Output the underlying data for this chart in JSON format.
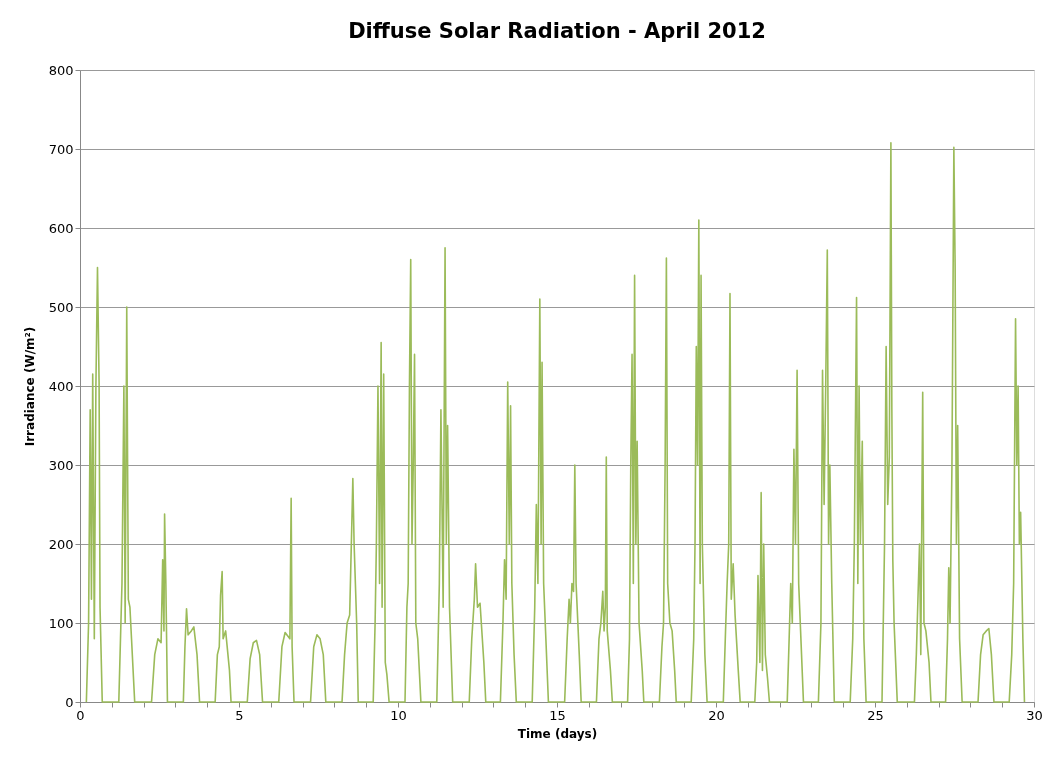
{
  "chart_data": {
    "type": "line",
    "title": "Diffuse Solar Radiation - April 2012",
    "xlabel": "Time (days)",
    "ylabel": "Irradiance (W/m²)",
    "xlim": [
      0,
      30
    ],
    "ylim": [
      0,
      800
    ],
    "xticks": [
      0,
      {
        "value": 1,
        "label": null
      },
      {
        "value": 2,
        "label": null
      },
      {
        "value": 3,
        "label": null
      },
      {
        "value": 4,
        "label": null
      },
      5,
      {
        "value": 6,
        "label": null
      },
      {
        "value": 7,
        "label": null
      },
      {
        "value": 8,
        "label": null
      },
      {
        "value": 9,
        "label": null
      },
      10,
      {
        "value": 11,
        "label": null
      },
      {
        "value": 12,
        "label": null
      },
      {
        "value": 13,
        "label": null
      },
      {
        "value": 14,
        "label": null
      },
      15,
      {
        "value": 16,
        "label": null
      },
      {
        "value": 17,
        "label": null
      },
      {
        "value": 18,
        "label": null
      },
      {
        "value": 19,
        "label": null
      },
      20,
      {
        "value": 21,
        "label": null
      },
      {
        "value": 22,
        "label": null
      },
      {
        "value": 23,
        "label": null
      },
      {
        "value": 24,
        "label": null
      },
      25,
      {
        "value": 26,
        "label": null
      },
      {
        "value": 27,
        "label": null
      },
      {
        "value": 28,
        "label": null
      },
      {
        "value": 29,
        "label": null
      },
      30
    ],
    "yticks": [
      0,
      100,
      200,
      300,
      400,
      500,
      600,
      700,
      800
    ],
    "grid": "y",
    "marker": "none",
    "line_style": "solid",
    "series": [
      {
        "color": "#9bbb59",
        "x": [
          0.2,
          0.27,
          0.32,
          0.36,
          0.4,
          0.45,
          0.5,
          0.55,
          0.6,
          0.63,
          0.7,
          1.22,
          1.32,
          1.38,
          1.42,
          1.47,
          1.52,
          1.57,
          1.62,
          1.72,
          2.25,
          2.35,
          2.45,
          2.55,
          2.6,
          2.64,
          2.66,
          2.7,
          2.75,
          3.25,
          3.3,
          3.35,
          3.4,
          3.5,
          3.58,
          3.68,
          3.76,
          4.25,
          4.32,
          4.38,
          4.42,
          4.47,
          4.5,
          4.58,
          4.7,
          4.75,
          5.26,
          5.35,
          5.45,
          5.55,
          5.65,
          5.74,
          6.25,
          6.35,
          6.45,
          6.6,
          6.64,
          6.67,
          6.73,
          7.25,
          7.35,
          7.45,
          7.55,
          7.65,
          7.73,
          8.24,
          8.32,
          8.4,
          8.48,
          8.55,
          8.58,
          8.62,
          8.7,
          8.75,
          9.22,
          9.28,
          9.32,
          9.37,
          9.42,
          9.47,
          9.5,
          9.55,
          9.6,
          9.65,
          9.72,
          10.22,
          10.28,
          10.32,
          10.36,
          10.4,
          10.44,
          10.48,
          10.52,
          10.56,
          10.62,
          10.72,
          11.22,
          11.3,
          11.35,
          11.42,
          11.48,
          11.52,
          11.56,
          11.62,
          11.72,
          12.24,
          12.32,
          12.4,
          12.44,
          12.5,
          12.58,
          12.7,
          12.76,
          13.22,
          13.3,
          13.35,
          13.4,
          13.45,
          13.5,
          13.54,
          13.58,
          13.65,
          13.72,
          14.22,
          14.3,
          14.35,
          14.4,
          14.46,
          14.5,
          14.53,
          14.58,
          14.65,
          14.73,
          15.24,
          15.32,
          15.38,
          15.42,
          15.47,
          15.52,
          15.56,
          15.6,
          15.7,
          15.76,
          16.24,
          16.32,
          16.38,
          16.44,
          16.48,
          16.52,
          16.55,
          16.58,
          16.68,
          16.74,
          17.22,
          17.28,
          17.32,
          17.36,
          17.4,
          17.44,
          17.48,
          17.52,
          17.58,
          17.68,
          17.73,
          18.22,
          18.3,
          18.35,
          18.4,
          18.44,
          18.48,
          18.55,
          18.62,
          18.7,
          18.75,
          19.22,
          19.3,
          19.34,
          19.38,
          19.42,
          19.46,
          19.5,
          19.53,
          19.57,
          19.65,
          19.72,
          20.23,
          20.3,
          20.35,
          20.4,
          20.44,
          20.48,
          20.54,
          20.6,
          20.7,
          20.76,
          21.22,
          21.28,
          21.32,
          21.38,
          21.42,
          21.46,
          21.5,
          21.55,
          21.62,
          21.68,
          22.24,
          22.3,
          22.35,
          22.4,
          22.45,
          22.5,
          22.55,
          22.6,
          22.66,
          22.75,
          23.22,
          23.3,
          23.35,
          23.4,
          23.45,
          23.5,
          23.54,
          23.58,
          23.64,
          23.72,
          24.22,
          24.3,
          24.35,
          24.42,
          24.46,
          24.5,
          24.54,
          24.6,
          24.65,
          24.72,
          25.22,
          25.3,
          25.35,
          25.4,
          25.45,
          25.5,
          25.53,
          25.56,
          25.6,
          25.66,
          25.7,
          26.24,
          26.3,
          26.35,
          26.4,
          26.44,
          26.5,
          26.54,
          26.6,
          26.7,
          26.76,
          27.22,
          27.28,
          27.32,
          27.36,
          27.42,
          27.48,
          27.52,
          27.56,
          27.6,
          27.66,
          27.74,
          28.24,
          28.32,
          28.4,
          28.5,
          28.58,
          28.66,
          28.74,
          29.22,
          29.3,
          29.36,
          29.42,
          29.46,
          29.5,
          29.54,
          29.58,
          29.65,
          29.7
        ],
        "values": [
          0,
          100,
          370,
          130,
          415,
          80,
          400,
          550,
          405,
          120,
          0,
          0,
          150,
          400,
          100,
          500,
          130,
          120,
          80,
          0,
          0,
          60,
          80,
          75,
          180,
          90,
          238,
          150,
          0,
          0,
          70,
          118,
          85,
          90,
          95,
          60,
          0,
          0,
          60,
          70,
          135,
          165,
          80,
          90,
          40,
          0,
          0,
          55,
          75,
          78,
          60,
          0,
          0,
          70,
          88,
          80,
          258,
          70,
          0,
          0,
          70,
          85,
          80,
          60,
          0,
          0,
          60,
          100,
          110,
          230,
          283,
          200,
          100,
          0,
          0,
          100,
          200,
          400,
          150,
          455,
          120,
          415,
          50,
          35,
          0,
          0,
          120,
          150,
          400,
          560,
          200,
          300,
          440,
          100,
          80,
          0,
          0,
          150,
          370,
          120,
          575,
          200,
          350,
          120,
          0,
          0,
          80,
          130,
          175,
          120,
          125,
          50,
          0,
          0,
          100,
          180,
          130,
          405,
          200,
          375,
          150,
          60,
          0,
          0,
          120,
          250,
          150,
          510,
          200,
          430,
          150,
          80,
          0,
          0,
          80,
          130,
          100,
          150,
          140,
          300,
          150,
          60,
          0,
          0,
          80,
          100,
          140,
          90,
          120,
          310,
          90,
          40,
          0,
          0,
          80,
          300,
          440,
          150,
          540,
          200,
          330,
          100,
          40,
          0,
          0,
          70,
          100,
          300,
          562,
          150,
          100,
          90,
          40,
          0,
          0,
          80,
          200,
          450,
          300,
          610,
          150,
          540,
          200,
          60,
          0,
          0,
          90,
          150,
          200,
          517,
          130,
          175,
          110,
          40,
          0,
          0,
          50,
          160,
          50,
          265,
          40,
          200,
          60,
          30,
          0,
          0,
          80,
          150,
          100,
          320,
          200,
          420,
          150,
          90,
          0,
          0,
          100,
          420,
          250,
          400,
          572,
          200,
          300,
          150,
          0,
          0,
          80,
          200,
          512,
          150,
          400,
          200,
          330,
          80,
          0,
          0,
          200,
          450,
          250,
          310,
          708,
          370,
          180,
          100,
          40,
          0,
          0,
          60,
          130,
          200,
          60,
          392,
          100,
          90,
          50,
          0,
          0,
          80,
          170,
          100,
          300,
          702,
          550,
          200,
          350,
          80,
          0,
          0,
          60,
          85,
          90,
          93,
          60,
          0,
          0,
          60,
          150,
          485,
          300,
          400,
          200,
          240,
          80,
          0
        ]
      }
    ]
  }
}
